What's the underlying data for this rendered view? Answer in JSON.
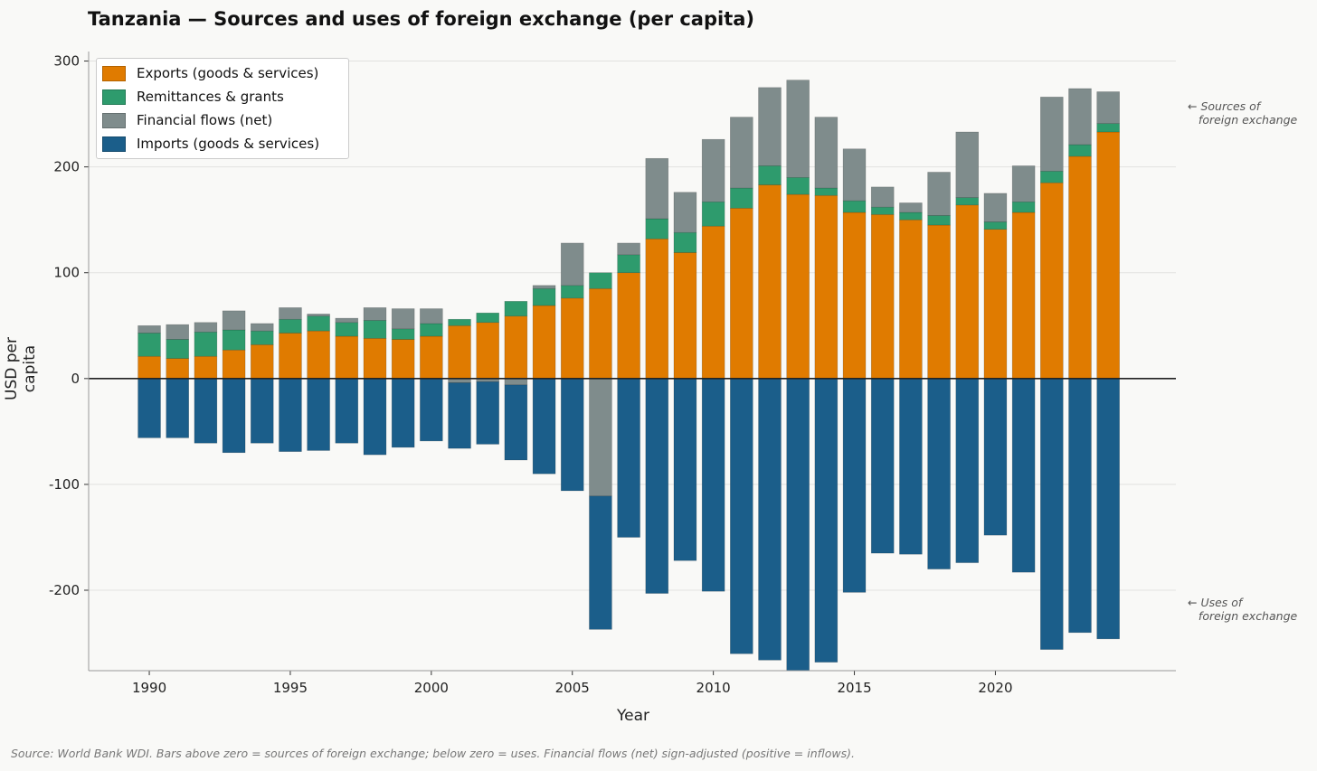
{
  "chart_data": {
    "type": "bar",
    "stacked": true,
    "title": "Tanzania — Sources and uses of foreign exchange (per capita)",
    "xlabel": "Year",
    "ylabel": "USD per capita",
    "ylim": [
      -276,
      309
    ],
    "xlim": [
      1987.85,
      2026.4
    ],
    "yticks": [
      -200,
      -100,
      0,
      100,
      200,
      300
    ],
    "ytick_labels": [
      "-200",
      "-100",
      "0",
      "100",
      "200",
      "300"
    ],
    "xticks": [
      1990,
      1995,
      2000,
      2005,
      2010,
      2015,
      2020
    ],
    "xtick_labels": [
      "1990",
      "1995",
      "2000",
      "2005",
      "2010",
      "2015",
      "2020"
    ],
    "grid": "horizontal",
    "legend_position": "top-left",
    "x": [
      1990,
      1991,
      1992,
      1993,
      1994,
      1995,
      1996,
      1997,
      1998,
      1999,
      2000,
      2001,
      2002,
      2003,
      2004,
      2005,
      2006,
      2007,
      2008,
      2009,
      2010,
      2011,
      2012,
      2013,
      2014,
      2015,
      2016,
      2017,
      2018,
      2019,
      2020,
      2021,
      2022,
      2023,
      2024
    ],
    "series": [
      {
        "name": "Exports (goods & services)",
        "color": "#e07b00",
        "values": [
          21,
          19,
          21,
          27,
          32,
          43,
          45,
          40,
          38,
          37,
          40,
          50,
          53,
          59,
          69,
          76,
          85,
          100,
          132,
          119,
          144,
          161,
          183,
          174,
          173,
          157,
          155,
          150,
          145,
          164,
          141,
          157,
          185,
          210,
          233
        ]
      },
      {
        "name": "Remittances & grants",
        "color": "#2e9b6d",
        "values": [
          22,
          18,
          23,
          19,
          13,
          13,
          14,
          13,
          17,
          10,
          12,
          6,
          9,
          14,
          16,
          12,
          15,
          17,
          19,
          19,
          23,
          19,
          18,
          16,
          7,
          11,
          7,
          7,
          9,
          7,
          7,
          10,
          11,
          11,
          8
        ]
      },
      {
        "name": "Financial flows (net)",
        "color": "#7f8c8c",
        "values": [
          7,
          14,
          9,
          18,
          7,
          11,
          2,
          4,
          12,
          19,
          14,
          -4,
          -3,
          -6,
          3,
          40,
          -111,
          11,
          57,
          38,
          59,
          67,
          74,
          92,
          67,
          49,
          19,
          9,
          41,
          62,
          27,
          34,
          70,
          53,
          30
        ]
      },
      {
        "name": "Imports (goods & services)",
        "color": "#1b5e8a",
        "values": [
          -56,
          -56,
          -61,
          -70,
          -61,
          -69,
          -68,
          -61,
          -72,
          -65,
          -59,
          -62,
          -59,
          -71,
          -90,
          -106,
          -126,
          -150,
          -203,
          -172,
          -201,
          -260,
          -266,
          -276,
          -268,
          -202,
          -165,
          -166,
          -180,
          -174,
          -148,
          -183,
          -256,
          -240,
          -246
        ]
      }
    ],
    "annotations": [
      "← Sources of\n   foreign exchange",
      "← Uses of\n   foreign exchange"
    ],
    "source": "Source: World Bank WDI. Bars above zero = sources of foreign exchange; below zero = uses. Financial flows (net) sign-adjusted (positive = inflows)."
  }
}
